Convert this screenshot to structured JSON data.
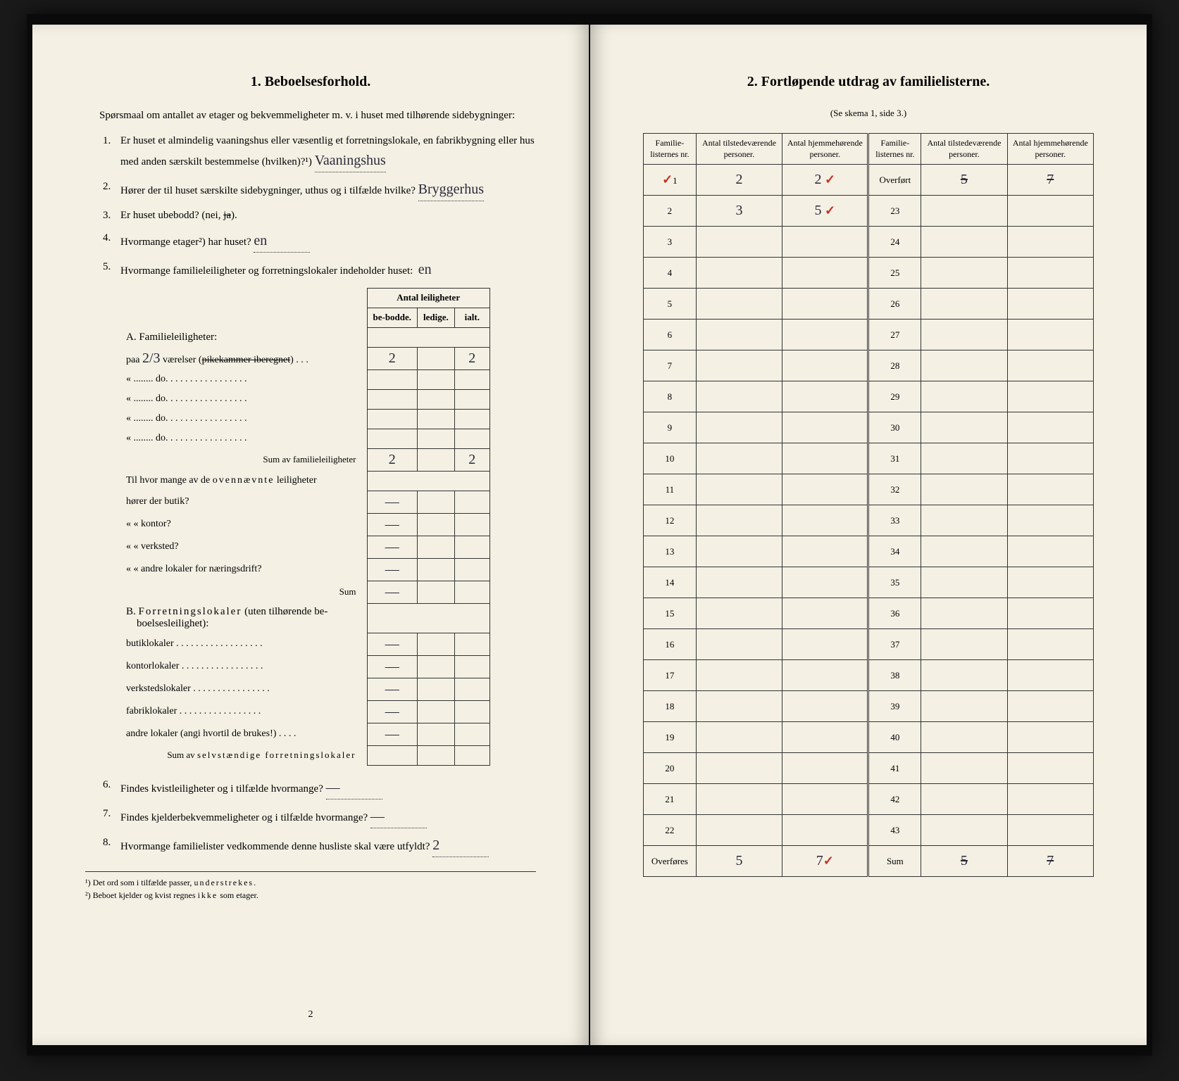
{
  "left": {
    "section_num": "1.",
    "section_title": "Beboelsesforhold.",
    "intro": "Spørsmaal om antallet av etager og bekvemmeligheter m. v. i huset med tilhørende sidebygninger:",
    "questions": [
      {
        "num": "1.",
        "text": "Er huset et almindelig vaaningshus eller væsentlig et forretningslokale, en fabrikbygning eller hus med anden særskilt bestemmelse (hvilken)?¹)",
        "answer": "Vaaningshus"
      },
      {
        "num": "2.",
        "text": "Hører der til huset særskilte sidebygninger, uthus og i tilfælde hvilke?",
        "answer": "Bryggerhus"
      },
      {
        "num": "3.",
        "text": "Er huset ubebodd?",
        "answer_prefix": "(nei,",
        "answer_struck": "ja",
        "answer_suffix": ")."
      },
      {
        "num": "4.",
        "text": "Hvormange etager²) har huset?",
        "answer": "en"
      },
      {
        "num": "5.",
        "text": "Hvormange familieleiligheter og forretningslokaler indeholder huset:",
        "answer_end": "en"
      }
    ],
    "table_headers_group": "Antal leiligheter",
    "table_headers": [
      "be-bodde.",
      "ledige.",
      "ialt."
    ],
    "sectionA_title": "A. Familieleiligheter:",
    "sectionA_rows": [
      {
        "label": "paa",
        "num": "2/3",
        "label2": "værelser (pikekammer iberegnet)",
        "struck_part": "pikekammer iberegnet",
        "vals": [
          "2",
          "",
          "2"
        ]
      },
      {
        "label": "«",
        "label2": "do.",
        "vals": [
          "",
          "",
          ""
        ]
      },
      {
        "label": "«",
        "label2": "do.",
        "vals": [
          "",
          "",
          ""
        ]
      },
      {
        "label": "«",
        "label2": "do.",
        "vals": [
          "",
          "",
          ""
        ]
      },
      {
        "label": "«",
        "label2": "do.",
        "vals": [
          "",
          "",
          ""
        ]
      }
    ],
    "sectionA_sum_label": "Sum av familieleiligheter",
    "sectionA_sum_vals": [
      "2",
      "",
      "2"
    ],
    "sectionA_sub": "Til hvor mange av de ovennævnte leiligheter",
    "sectionA_sub_rows": [
      {
        "label": "hører der butik?",
        "vals": [
          "—",
          "",
          ""
        ]
      },
      {
        "label": "«    « kontor?",
        "vals": [
          "—",
          "",
          ""
        ]
      },
      {
        "label": "«    « verksted?",
        "vals": [
          "—",
          "",
          ""
        ]
      },
      {
        "label": "«    « andre lokaler for næringsdrift?",
        "vals": [
          "—",
          "",
          ""
        ]
      }
    ],
    "sectionA_sub_sum": "Sum",
    "sectionA_sub_sum_vals": [
      "—",
      "",
      ""
    ],
    "sectionB_title": "B. Forretningslokaler (uten tilhørende beboelsesleilighet):",
    "sectionB_rows": [
      {
        "label": "butiklokaler",
        "vals": [
          "—",
          "",
          ""
        ]
      },
      {
        "label": "kontorlokaler",
        "vals": [
          "—",
          "",
          ""
        ]
      },
      {
        "label": "verkstedslokaler",
        "vals": [
          "—",
          "",
          ""
        ]
      },
      {
        "label": "fabriklokaler",
        "vals": [
          "—",
          "",
          ""
        ]
      },
      {
        "label": "andre lokaler (angi hvortil de brukes!)",
        "vals": [
          "—",
          "",
          ""
        ]
      }
    ],
    "sectionB_sum_label": "Sum av selvstændige forretningslokaler",
    "sectionB_sum_vals": [
      "",
      "",
      ""
    ],
    "q6": {
      "num": "6.",
      "text": "Findes kvistleiligheter og i tilfælde hvormange?",
      "answer": "—"
    },
    "q7": {
      "num": "7.",
      "text": "Findes kjelderbekvemmeligheter og i tilfælde hvormange?",
      "answer": "—"
    },
    "q8": {
      "num": "8.",
      "text": "Hvormange familielister vedkommende denne husliste skal være utfyldt?",
      "answer": "2"
    },
    "footnote1": "¹) Det ord som i tilfælde passer, understrekes.",
    "footnote2": "²) Beboet kjelder og kvist regnes ikke som etager.",
    "page_num": "2"
  },
  "right": {
    "section_num": "2.",
    "section_title": "Fortløpende utdrag av familielisterne.",
    "subtitle": "(Se skema 1, side 3.)",
    "headers": [
      "Familie-listernes nr.",
      "Antal tilstedeværende personer.",
      "Antal hjemmehørende personer.",
      "Familie-listernes nr.",
      "Antal tilstedeværende personer.",
      "Antal hjemmehørende personer."
    ],
    "rows": [
      {
        "l_num": "1",
        "l_v1": "2",
        "l_v2": "2",
        "l_mark1": "✓",
        "l_mark2": "✓",
        "r_num": "Overført",
        "r_v1": "5",
        "r_v2": "7"
      },
      {
        "l_num": "2",
        "l_v1": "3",
        "l_v2": "5",
        "l_mark2": "✓",
        "r_num": "23",
        "r_v1": "",
        "r_v2": ""
      },
      {
        "l_num": "3",
        "l_v1": "",
        "l_v2": "",
        "r_num": "24",
        "r_v1": "",
        "r_v2": ""
      },
      {
        "l_num": "4",
        "l_v1": "",
        "l_v2": "",
        "r_num": "25",
        "r_v1": "",
        "r_v2": ""
      },
      {
        "l_num": "5",
        "l_v1": "",
        "l_v2": "",
        "r_num": "26",
        "r_v1": "",
        "r_v2": ""
      },
      {
        "l_num": "6",
        "l_v1": "",
        "l_v2": "",
        "r_num": "27",
        "r_v1": "",
        "r_v2": ""
      },
      {
        "l_num": "7",
        "l_v1": "",
        "l_v2": "",
        "r_num": "28",
        "r_v1": "",
        "r_v2": ""
      },
      {
        "l_num": "8",
        "l_v1": "",
        "l_v2": "",
        "r_num": "29",
        "r_v1": "",
        "r_v2": ""
      },
      {
        "l_num": "9",
        "l_v1": "",
        "l_v2": "",
        "r_num": "30",
        "r_v1": "",
        "r_v2": ""
      },
      {
        "l_num": "10",
        "l_v1": "",
        "l_v2": "",
        "r_num": "31",
        "r_v1": "",
        "r_v2": ""
      },
      {
        "l_num": "11",
        "l_v1": "",
        "l_v2": "",
        "r_num": "32",
        "r_v1": "",
        "r_v2": ""
      },
      {
        "l_num": "12",
        "l_v1": "",
        "l_v2": "",
        "r_num": "33",
        "r_v1": "",
        "r_v2": ""
      },
      {
        "l_num": "13",
        "l_v1": "",
        "l_v2": "",
        "r_num": "34",
        "r_v1": "",
        "r_v2": ""
      },
      {
        "l_num": "14",
        "l_v1": "",
        "l_v2": "",
        "r_num": "35",
        "r_v1": "",
        "r_v2": ""
      },
      {
        "l_num": "15",
        "l_v1": "",
        "l_v2": "",
        "r_num": "36",
        "r_v1": "",
        "r_v2": ""
      },
      {
        "l_num": "16",
        "l_v1": "",
        "l_v2": "",
        "r_num": "37",
        "r_v1": "",
        "r_v2": ""
      },
      {
        "l_num": "17",
        "l_v1": "",
        "l_v2": "",
        "r_num": "38",
        "r_v1": "",
        "r_v2": ""
      },
      {
        "l_num": "18",
        "l_v1": "",
        "l_v2": "",
        "r_num": "39",
        "r_v1": "",
        "r_v2": ""
      },
      {
        "l_num": "19",
        "l_v1": "",
        "l_v2": "",
        "r_num": "40",
        "r_v1": "",
        "r_v2": ""
      },
      {
        "l_num": "20",
        "l_v1": "",
        "l_v2": "",
        "r_num": "41",
        "r_v1": "",
        "r_v2": ""
      },
      {
        "l_num": "21",
        "l_v1": "",
        "l_v2": "",
        "r_num": "42",
        "r_v1": "",
        "r_v2": ""
      },
      {
        "l_num": "22",
        "l_v1": "",
        "l_v2": "",
        "r_num": "43",
        "r_v1": "",
        "r_v2": ""
      }
    ],
    "footer": {
      "l_label": "Overføres",
      "l_v1": "5",
      "l_v2": "7",
      "l_mark2": "✓",
      "r_label": "Sum",
      "r_v1": "5",
      "r_v2": "7"
    }
  },
  "colors": {
    "page_bg": "#f4f0e4",
    "ink": "#1a1a1a",
    "written": "#2a2a3a",
    "red": "#c23020"
  }
}
